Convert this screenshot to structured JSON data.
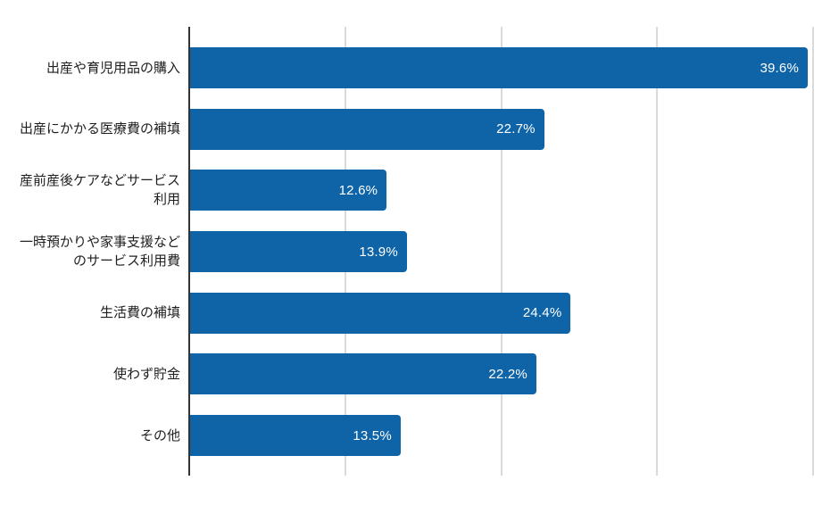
{
  "chart_data": {
    "type": "bar",
    "orientation": "horizontal",
    "title": "",
    "xlabel": "",
    "ylabel": "",
    "categories": [
      "出産や育児用品の購入",
      "出産にかかる医療費の補填",
      "産前産後ケアなどサービス\n利用",
      "一時預かりや家事支援など\nのサービス利用費",
      "生活費の補填",
      "使わず貯金",
      "その他"
    ],
    "values": [
      39.6,
      22.7,
      12.6,
      13.9,
      24.4,
      22.2,
      13.5
    ],
    "value_labels": [
      "39.6%",
      "22.7%",
      "12.6%",
      "13.9%",
      "24.4%",
      "22.2%",
      "13.5%"
    ],
    "xlim": [
      0,
      40
    ],
    "gridlines_pct": [
      10,
      20,
      30,
      40
    ],
    "grid": true,
    "legend": false,
    "axis_tick_labels_visible": false,
    "colors": {
      "bar": "#0F64A8",
      "value_text": "#FFFFFF",
      "category_text": "#1F1F1F",
      "axis_line": "#333333",
      "gridline": "#DADADA",
      "background": "#FFFFFF"
    }
  }
}
